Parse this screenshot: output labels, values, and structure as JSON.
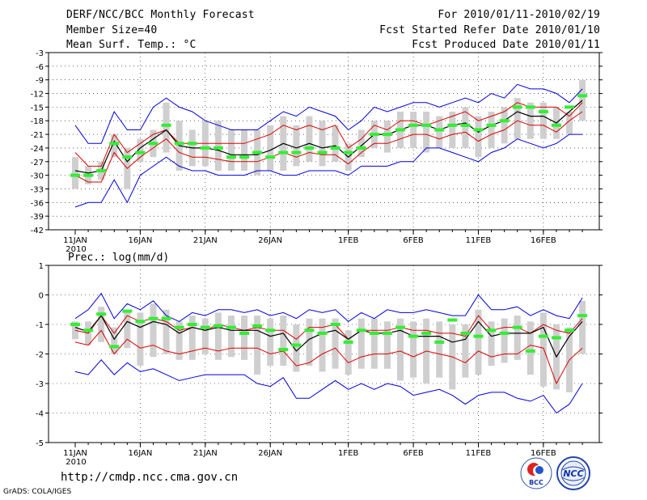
{
  "header": {
    "title": "DERF/NCC/BCC Monthly Forecast",
    "member": "Member Size=40",
    "variable": "Mean Surf. Temp.: °C",
    "period": "For 2010/01/11-2010/02/19",
    "refer": "Fcst Started Refer Date 2010/01/10",
    "produced": "Fcst Produced Date 2010/01/11"
  },
  "footer": {
    "url": "http://cmdp.ncc.cma.gov.cn",
    "credit": "GrADS: COLA/IGES",
    "logo_left": "BCC",
    "logo_right": "NCC"
  },
  "colors": {
    "envelope": "#0000dd",
    "spread": "#dd0000",
    "mean": "#000000",
    "box": "#cfcfcf",
    "marker": "#33ee33"
  },
  "chart_data": [
    {
      "type": "line",
      "title": "Mean Surf. Temp.: °C",
      "xlabel": "",
      "ylabel": "",
      "x_days": [
        0,
        1,
        2,
        3,
        4,
        5,
        6,
        7,
        8,
        9,
        10,
        11,
        12,
        13,
        14,
        15,
        16,
        17,
        18,
        19,
        20,
        21,
        22,
        23,
        24,
        25,
        26,
        27,
        28,
        29,
        30,
        31,
        32,
        33,
        34,
        35,
        36,
        37,
        38,
        39
      ],
      "tick_labels": [
        "11JAN",
        "16JAN",
        "21JAN",
        "26JAN",
        "1FEB",
        "6FEB",
        "11FEB",
        "16FEB"
      ],
      "tick_days": [
        0,
        5,
        10,
        15,
        21,
        26,
        31,
        36
      ],
      "year_label": "2010",
      "ylim": [
        -42,
        -3
      ],
      "yticks": [
        -42,
        -39,
        -36,
        -33,
        -30,
        -27,
        -24,
        -21,
        -18,
        -15,
        -12,
        -9,
        -6,
        -3
      ],
      "grid": true,
      "series": [
        {
          "name": "max",
          "values": [
            -19,
            -23,
            -23,
            -16,
            -20,
            -20,
            -15,
            -13,
            -15,
            -16,
            -18,
            -19,
            -20,
            -20,
            -20,
            -18,
            -16,
            -17,
            -15,
            -16,
            -17,
            -20,
            -18,
            -15,
            -16,
            -15,
            -14,
            -14,
            -15,
            -14,
            -13,
            -14,
            -12,
            -13,
            -10,
            -11,
            -11,
            -12,
            -14,
            -11
          ]
        },
        {
          "name": "upper",
          "values": [
            -25,
            -28,
            -28,
            -21,
            -25,
            -23,
            -21,
            -20,
            -23,
            -23,
            -23,
            -23,
            -23,
            -23,
            -22,
            -21,
            -19,
            -20,
            -19,
            -20,
            -19,
            -24,
            -22,
            -19,
            -20,
            -18,
            -18,
            -19,
            -18,
            -17,
            -16,
            -18,
            -17,
            -16,
            -14,
            -15,
            -15,
            -15,
            -17,
            -14
          ]
        },
        {
          "name": "mean",
          "values": [
            -29,
            -29.5,
            -29,
            -22.5,
            -27,
            -24,
            -22,
            -20,
            -23.5,
            -24,
            -24,
            -24.5,
            -25.5,
            -25.5,
            -25.5,
            -24.5,
            -23,
            -24,
            -23,
            -24,
            -23.5,
            -26,
            -23.5,
            -21,
            -21,
            -20,
            -19,
            -19,
            -20,
            -19,
            -18.5,
            -20.5,
            -19,
            -18,
            -16,
            -17,
            -17,
            -18.5,
            -16,
            -13.5
          ]
        },
        {
          "name": "lower",
          "values": [
            -30,
            -31.5,
            -31.5,
            -25,
            -28.5,
            -26,
            -24,
            -22,
            -25,
            -26,
            -26,
            -26.5,
            -27,
            -27,
            -27,
            -26,
            -25,
            -26,
            -25,
            -25.5,
            -25.5,
            -27.5,
            -25,
            -23,
            -23,
            -22,
            -21,
            -21,
            -22,
            -21,
            -20.5,
            -22.5,
            -21,
            -20,
            -18,
            -19,
            -19,
            -20.5,
            -18,
            -16
          ]
        },
        {
          "name": "min",
          "values": [
            -37,
            -36,
            -36,
            -31,
            -36,
            -30,
            -28,
            -26,
            -28,
            -29,
            -29,
            -30,
            -30,
            -30,
            -29,
            -29,
            -30,
            -30,
            -29,
            -29,
            -29,
            -30,
            -28,
            -28,
            -28,
            -27,
            -27,
            -24,
            -24,
            -25,
            -26,
            -27,
            -25,
            -24,
            -22,
            -23,
            -24,
            -23,
            -21,
            -21
          ]
        },
        {
          "name": "box_top",
          "values": [
            -26,
            -28,
            -27,
            -21,
            -24,
            -22,
            -20,
            -14,
            -18,
            -20,
            -18,
            -18,
            -20,
            -20,
            -20,
            -19,
            -17,
            -19,
            -17,
            -18,
            -19,
            -23,
            -20,
            -18,
            -18,
            -16,
            -16,
            -16,
            -17,
            -16,
            -15,
            -17,
            -16,
            -15,
            -13,
            -14,
            -14,
            -15,
            -16,
            -9
          ]
        },
        {
          "name": "box_bottom",
          "values": [
            -33,
            -32,
            -31,
            -26,
            -33,
            -27,
            -26,
            -25,
            -29,
            -28,
            -28,
            -29,
            -29,
            -29,
            -30,
            -29,
            -29,
            -28,
            -27,
            -28,
            -27,
            -29,
            -26,
            -24,
            -25,
            -24,
            -24,
            -25,
            -24,
            -24,
            -24,
            -26,
            -24,
            -23,
            -22,
            -22,
            -22,
            -22,
            -21,
            -18
          ]
        },
        {
          "name": "marker",
          "values": [
            -30,
            -30,
            -29,
            -23,
            -26,
            -25,
            -23,
            -19,
            -23,
            -23,
            -24,
            -24,
            -26,
            -26,
            -25,
            -26,
            -25,
            -25,
            -24,
            -25,
            -24,
            -25,
            -24,
            -21,
            -21,
            -20,
            -19,
            -19,
            -20,
            -19,
            -19,
            -20,
            -19,
            -18,
            -15,
            -15,
            -16,
            -19,
            -15,
            -12.5
          ]
        }
      ]
    },
    {
      "type": "line",
      "title": "Prec.: log(mm/d)",
      "xlabel": "",
      "ylabel": "",
      "x_days": [
        0,
        1,
        2,
        3,
        4,
        5,
        6,
        7,
        8,
        9,
        10,
        11,
        12,
        13,
        14,
        15,
        16,
        17,
        18,
        19,
        20,
        21,
        22,
        23,
        24,
        25,
        26,
        27,
        28,
        29,
        30,
        31,
        32,
        33,
        34,
        35,
        36,
        37,
        38,
        39
      ],
      "tick_labels": [
        "11JAN",
        "16JAN",
        "21JAN",
        "26JAN",
        "1FEB",
        "6FEB",
        "11FEB",
        "16FEB"
      ],
      "tick_days": [
        0,
        5,
        10,
        15,
        21,
        26,
        31,
        36
      ],
      "year_label": "2010",
      "ylim": [
        -5,
        1
      ],
      "yticks": [
        -5,
        -4,
        -3,
        -2,
        -1,
        0,
        1
      ],
      "grid": true,
      "series": [
        {
          "name": "max",
          "values": [
            -0.8,
            -0.5,
            0.05,
            -0.8,
            -0.3,
            -0.5,
            -0.2,
            -0.7,
            -0.9,
            -0.6,
            -0.7,
            -0.5,
            -0.5,
            -0.6,
            -0.5,
            -0.7,
            -0.6,
            -0.8,
            -0.5,
            -0.6,
            -0.5,
            -0.9,
            -0.6,
            -0.8,
            -0.5,
            -0.6,
            -0.6,
            -0.5,
            -0.6,
            -0.7,
            -0.7,
            0.0,
            -0.5,
            -0.5,
            -0.4,
            -0.7,
            -0.5,
            -0.7,
            -0.8,
            -0.1
          ]
        },
        {
          "name": "upper",
          "values": [
            -1.2,
            -1.3,
            -0.7,
            -1.3,
            -0.7,
            -0.9,
            -0.8,
            -0.9,
            -1.2,
            -1.1,
            -1.2,
            -1.0,
            -1.1,
            -1.2,
            -1.1,
            -1.2,
            -1.2,
            -1.5,
            -1.1,
            -1.1,
            -1.0,
            -1.5,
            -1.2,
            -1.2,
            -1.2,
            -1.1,
            -1.2,
            -1.2,
            -1.3,
            -1.3,
            -1.4,
            -0.7,
            -1.2,
            -1.1,
            -1.1,
            -1.3,
            -1.0,
            -1.2,
            -1.3,
            -0.8
          ]
        },
        {
          "name": "mean",
          "values": [
            -1.1,
            -1.25,
            -0.7,
            -1.5,
            -0.9,
            -1.1,
            -0.9,
            -1.0,
            -1.3,
            -1.1,
            -1.2,
            -1.1,
            -1.2,
            -1.2,
            -1.2,
            -1.4,
            -1.3,
            -1.9,
            -1.5,
            -1.3,
            -1.2,
            -1.5,
            -1.2,
            -1.3,
            -1.3,
            -1.2,
            -1.4,
            -1.4,
            -1.4,
            -1.6,
            -1.5,
            -0.9,
            -1.4,
            -1.3,
            -1.3,
            -1.3,
            -1.1,
            -2.1,
            -1.4,
            -0.9
          ]
        },
        {
          "name": "lower",
          "values": [
            -1.6,
            -1.7,
            -1.2,
            -2.0,
            -1.5,
            -1.8,
            -1.7,
            -1.9,
            -2.0,
            -1.9,
            -1.8,
            -1.9,
            -1.8,
            -1.8,
            -1.8,
            -2.0,
            -1.9,
            -2.4,
            -2.3,
            -2.0,
            -1.8,
            -2.3,
            -2.1,
            -2.0,
            -2.0,
            -1.9,
            -2.1,
            -1.9,
            -2.0,
            -2.1,
            -2.3,
            -1.9,
            -2.1,
            -2.0,
            -2.0,
            -1.7,
            -1.8,
            -3.0,
            -2.2,
            -1.8
          ]
        },
        {
          "name": "min",
          "values": [
            -2.6,
            -2.7,
            -2.2,
            -2.7,
            -2.3,
            -2.6,
            -2.5,
            -2.7,
            -2.9,
            -2.8,
            -2.7,
            -2.7,
            -2.7,
            -2.7,
            -3.0,
            -3.1,
            -2.8,
            -3.5,
            -3.5,
            -3.2,
            -2.9,
            -3.2,
            -3.0,
            -3.2,
            -3.0,
            -3.1,
            -3.4,
            -3.3,
            -3.2,
            -3.4,
            -3.7,
            -3.4,
            -3.3,
            -3.3,
            -3.5,
            -3.6,
            -3.4,
            -4.0,
            -3.7,
            -3.0
          ]
        },
        {
          "name": "box_top",
          "values": [
            -0.9,
            -0.9,
            -0.4,
            -1.1,
            -0.5,
            -0.6,
            -0.3,
            -0.5,
            -0.9,
            -0.7,
            -0.8,
            -0.6,
            -0.7,
            -0.7,
            -0.7,
            -0.8,
            -0.7,
            -1.0,
            -0.8,
            -0.8,
            -0.8,
            -1.2,
            -0.8,
            -0.8,
            -0.9,
            -0.8,
            -0.9,
            -0.8,
            -0.9,
            -1.0,
            -1.0,
            -0.5,
            -0.9,
            -0.8,
            -0.7,
            -0.9,
            -0.6,
            -1.0,
            -1.1,
            -0.2
          ]
        },
        {
          "name": "box_bottom",
          "values": [
            -1.5,
            -1.7,
            -1.6,
            -2.0,
            -1.8,
            -2.4,
            -2.1,
            -2.0,
            -2.2,
            -2.2,
            -2.0,
            -2.2,
            -2.1,
            -2.2,
            -2.7,
            -2.4,
            -2.4,
            -2.6,
            -2.4,
            -2.6,
            -2.5,
            -2.7,
            -2.5,
            -2.5,
            -2.5,
            -2.9,
            -2.8,
            -3.0,
            -2.8,
            -3.2,
            -2.8,
            -2.7,
            -2.4,
            -2.3,
            -2.2,
            -2.7,
            -3.1,
            -3.2,
            -3.3,
            -2.0
          ]
        },
        {
          "name": "marker",
          "values": [
            -1.0,
            -1.2,
            -0.65,
            -1.75,
            -0.55,
            -0.9,
            -0.8,
            -0.8,
            -1.1,
            -1.0,
            -1.1,
            -1.05,
            -1.1,
            -1.3,
            -1.05,
            -1.2,
            -1.85,
            -1.7,
            -1.2,
            -1.3,
            -1.0,
            -1.6,
            -1.2,
            -1.3,
            -1.3,
            -1.1,
            -1.4,
            -1.3,
            -1.6,
            -0.85,
            -1.3,
            -1.4,
            -1.2,
            -1.3,
            -1.1,
            -1.9,
            -1.4,
            -1.45,
            -1.2,
            -0.7
          ]
        }
      ]
    }
  ]
}
